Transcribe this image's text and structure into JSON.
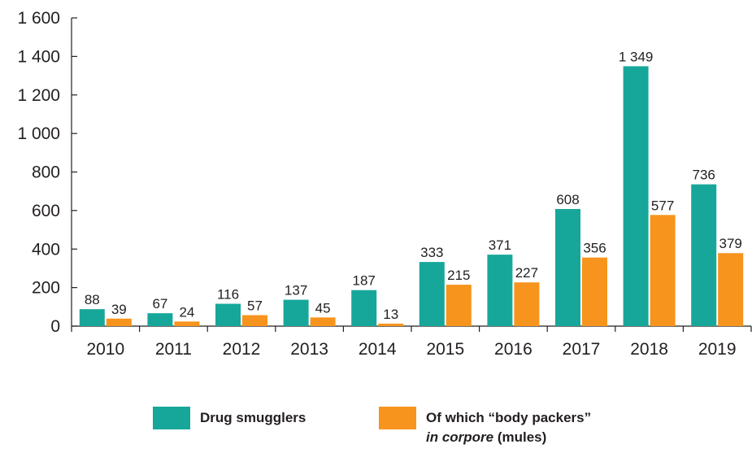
{
  "chart_data": {
    "type": "bar",
    "categories": [
      "2010",
      "2011",
      "2012",
      "2013",
      "2014",
      "2015",
      "2016",
      "2017",
      "2018",
      "2019"
    ],
    "series": [
      {
        "name": "Drug smugglers",
        "color": "#17a79a",
        "values": [
          88,
          67,
          116,
          137,
          187,
          333,
          371,
          608,
          1349,
          736
        ]
      },
      {
        "name": "Of which “body packers” in corpore (mules)",
        "color": "#f7941d",
        "values": [
          39,
          24,
          57,
          45,
          13,
          215,
          227,
          356,
          577,
          379
        ]
      }
    ],
    "ylim": [
      0,
      1600
    ],
    "yticks": [
      0,
      200,
      400,
      600,
      800,
      1000,
      1200,
      1400,
      1600
    ],
    "ytick_labels": [
      "0",
      "200",
      "400",
      "600",
      "800",
      "1 000",
      "1 200",
      "1 400",
      "1 600"
    ],
    "data_labels": [
      [
        "88",
        "67",
        "116",
        "137",
        "187",
        "333",
        "371",
        "608",
        "1 349",
        "736"
      ],
      [
        "39",
        "24",
        "57",
        "45",
        "13",
        "215",
        "227",
        "356",
        "577",
        "379"
      ]
    ],
    "legend_position": "bottom-center",
    "grid": false
  },
  "legend": {
    "series1": "Drug smugglers",
    "series2_line1": "Of which “body packers”",
    "series2_italic": "in corpore",
    "series2_rest": " (mules)"
  }
}
